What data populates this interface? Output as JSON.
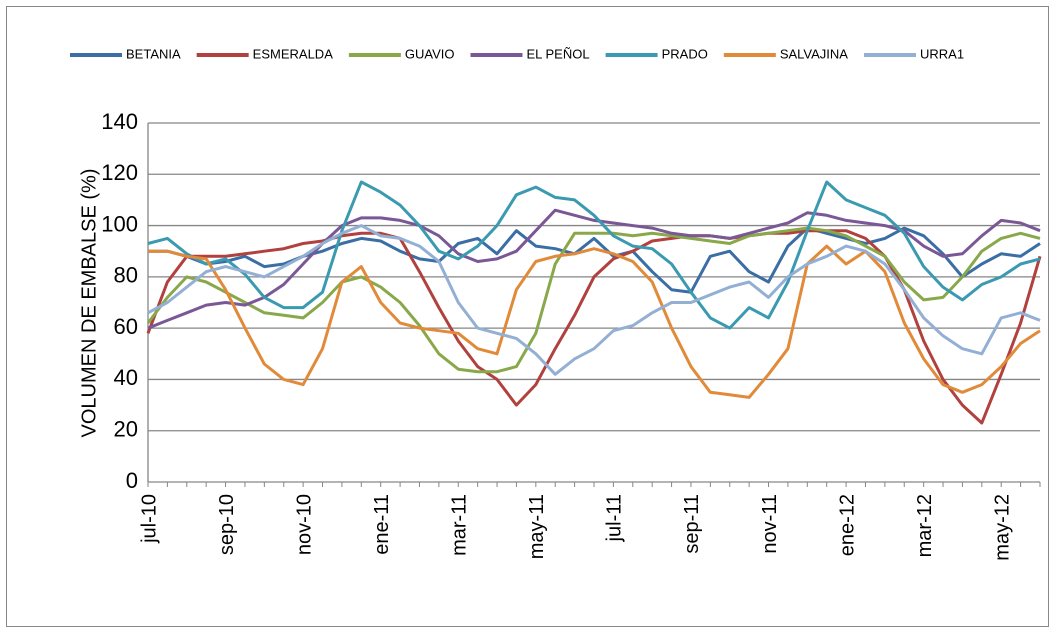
{
  "chart_data": {
    "type": "line",
    "y_label": "VOLUMEN DE EMBALSE (%)",
    "categories": [
      "jul-10",
      null,
      null,
      null,
      "sep-10",
      null,
      null,
      null,
      "nov-10",
      null,
      null,
      null,
      "ene-11",
      null,
      null,
      null,
      "mar-11",
      null,
      null,
      null,
      "may-11",
      null,
      null,
      null,
      "jul-11",
      null,
      null,
      null,
      "sep-11",
      null,
      null,
      null,
      "nov-11",
      null,
      null,
      null,
      "ene-12",
      null,
      null,
      null,
      "mar-12",
      null,
      null,
      null,
      "may-12",
      null,
      null
    ],
    "series": [
      {
        "name": "BETANIA",
        "color": "#3a6ea5",
        "values": [
          90,
          90,
          88,
          85,
          86,
          88,
          84,
          85,
          88,
          90,
          93,
          95,
          94,
          90,
          87,
          86,
          93,
          95,
          89,
          98,
          92,
          91,
          89,
          95,
          88,
          90,
          82,
          75,
          74,
          88,
          90,
          82,
          78,
          92,
          99,
          97,
          95,
          93,
          95,
          99,
          96,
          89,
          80,
          85,
          89,
          88,
          93
        ]
      },
      {
        "name": "ESMERALDA",
        "color": "#b0413e",
        "values": [
          58,
          78,
          88,
          88,
          88,
          89,
          90,
          91,
          93,
          94,
          96,
          97,
          97,
          95,
          82,
          68,
          55,
          45,
          40,
          30,
          38,
          52,
          65,
          80,
          87,
          90,
          94,
          95,
          96,
          96,
          95,
          96,
          97,
          97,
          98,
          98,
          98,
          95,
          88,
          75,
          55,
          40,
          30,
          23,
          42,
          62,
          88
        ]
      },
      {
        "name": "GUAVIO",
        "color": "#88a84a",
        "values": [
          62,
          72,
          80,
          78,
          74,
          70,
          66,
          65,
          64,
          70,
          78,
          80,
          76,
          70,
          61,
          50,
          44,
          43,
          43,
          45,
          58,
          85,
          97,
          97,
          97,
          96,
          97,
          96,
          95,
          94,
          93,
          96,
          97,
          98,
          99,
          98,
          96,
          92,
          88,
          78,
          71,
          72,
          80,
          90,
          95,
          97,
          95
        ]
      },
      {
        "name": "EL PEÑOL",
        "color": "#7a5896",
        "values": [
          60,
          63,
          66,
          69,
          70,
          69,
          72,
          77,
          85,
          93,
          100,
          103,
          103,
          102,
          100,
          96,
          89,
          86,
          87,
          90,
          98,
          106,
          104,
          102,
          101,
          100,
          99,
          97,
          96,
          96,
          95,
          97,
          99,
          101,
          105,
          104,
          102,
          101,
          100,
          98,
          92,
          88,
          89,
          96,
          102,
          101,
          98
        ]
      },
      {
        "name": "PRADO",
        "color": "#3a9ab0",
        "values": [
          93,
          95,
          89,
          85,
          87,
          81,
          72,
          68,
          68,
          74,
          98,
          117,
          113,
          108,
          100,
          90,
          87,
          92,
          100,
          112,
          115,
          111,
          110,
          104,
          96,
          92,
          91,
          85,
          74,
          64,
          60,
          68,
          64,
          78,
          98,
          117,
          110,
          107,
          104,
          97,
          84,
          76,
          71,
          77,
          80,
          85,
          87
        ]
      },
      {
        "name": "SALVAJINA",
        "color": "#e08a3a",
        "values": [
          90,
          90,
          88,
          87,
          75,
          60,
          46,
          40,
          38,
          52,
          78,
          84,
          70,
          62,
          60,
          59,
          58,
          52,
          50,
          75,
          86,
          88,
          89,
          91,
          89,
          86,
          78,
          60,
          45,
          35,
          34,
          33,
          42,
          52,
          85,
          92,
          85,
          90,
          82,
          62,
          48,
          38,
          35,
          38,
          45,
          54,
          59
        ]
      },
      {
        "name": "URRA1",
        "color": "#93afd4",
        "values": [
          66,
          70,
          76,
          82,
          84,
          82,
          80,
          84,
          88,
          93,
          97,
          100,
          96,
          95,
          92,
          86,
          70,
          60,
          58,
          56,
          50,
          42,
          48,
          52,
          59,
          61,
          66,
          70,
          70,
          73,
          76,
          78,
          72,
          80,
          85,
          88,
          92,
          90,
          85,
          75,
          64,
          57,
          52,
          50,
          64,
          66,
          63
        ]
      }
    ],
    "ylim": [
      0,
      140
    ],
    "yticks": [
      0,
      20,
      40,
      60,
      80,
      100,
      120,
      140
    ],
    "grid": true,
    "legend": "top"
  }
}
